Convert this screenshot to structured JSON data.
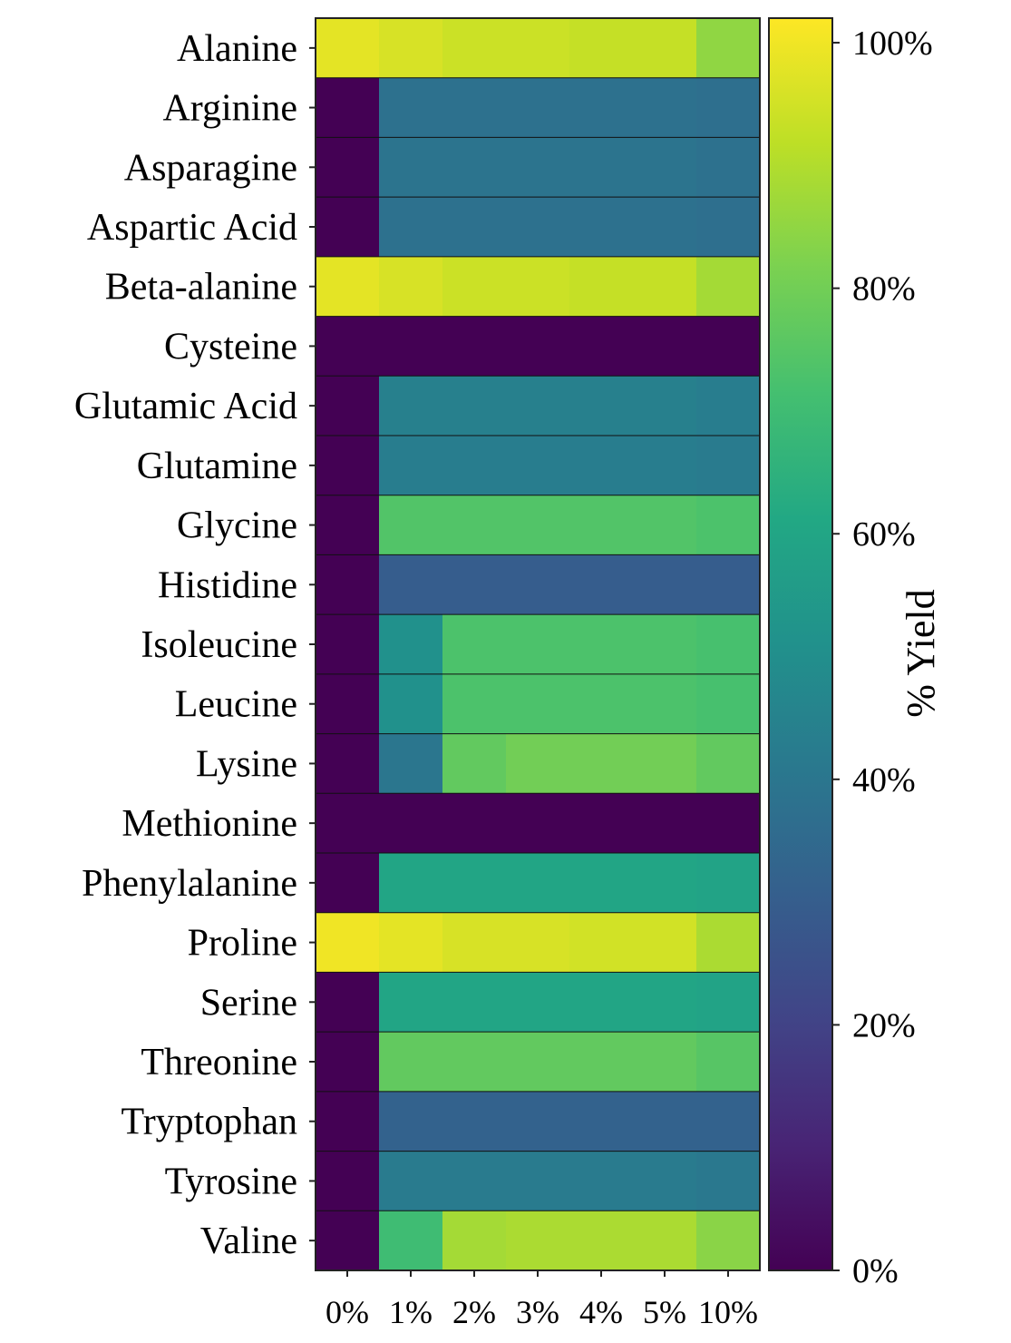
{
  "chart_data": {
    "type": "heatmap",
    "title": "",
    "xlabel": "",
    "ylabel": "",
    "x_categories": [
      "0%",
      "1%",
      "2%",
      "3%",
      "4%",
      "5%",
      "10%"
    ],
    "y_categories": [
      "Alanine",
      "Arginine",
      "Asparagine",
      "Aspartic Acid",
      "Beta-alanine",
      "Cysteine",
      "Glutamic Acid",
      "Glutamine",
      "Glycine",
      "Histidine",
      "Isoleucine",
      "Leucine",
      "Lysine",
      "Methionine",
      "Phenylalanine",
      "Proline",
      "Serine",
      "Threonine",
      "Tryptophan",
      "Tyrosine",
      "Valine"
    ],
    "values": [
      [
        98,
        96,
        94,
        94,
        93,
        93,
        85
      ],
      [
        0,
        38,
        38,
        38,
        38,
        38,
        37
      ],
      [
        0,
        39,
        39,
        39,
        39,
        39,
        38
      ],
      [
        0,
        38,
        38,
        38,
        38,
        38,
        37
      ],
      [
        98,
        96,
        94,
        94,
        93,
        93,
        88
      ],
      [
        0,
        0,
        0,
        0,
        0,
        0,
        0
      ],
      [
        0,
        44,
        44,
        44,
        44,
        44,
        43
      ],
      [
        0,
        43,
        43,
        43,
        43,
        43,
        42
      ],
      [
        0,
        74,
        74,
        74,
        74,
        74,
        73
      ],
      [
        0,
        30,
        30,
        30,
        30,
        30,
        30
      ],
      [
        0,
        51,
        73,
        73,
        73,
        73,
        72
      ],
      [
        0,
        51,
        73,
        73,
        73,
        73,
        72
      ],
      [
        0,
        40,
        77,
        80,
        80,
        80,
        77
      ],
      [
        0,
        0,
        0,
        0,
        0,
        0,
        0
      ],
      [
        0,
        60,
        60,
        60,
        60,
        60,
        59
      ],
      [
        100,
        98,
        96,
        96,
        95,
        95,
        89
      ],
      [
        0,
        60,
        60,
        60,
        60,
        60,
        59
      ],
      [
        0,
        77,
        77,
        77,
        77,
        77,
        75
      ],
      [
        0,
        32,
        32,
        32,
        32,
        32,
        32
      ],
      [
        0,
        42,
        42,
        42,
        42,
        42,
        41
      ],
      [
        0,
        70,
        88,
        89,
        89,
        89,
        84
      ]
    ],
    "colorbar": {
      "label": "% Yield",
      "ticks": [
        0,
        20,
        40,
        60,
        80,
        100
      ],
      "tick_labels": [
        "0%",
        "20%",
        "40%",
        "60%",
        "80%",
        "100%"
      ],
      "range": [
        0,
        102
      ],
      "colormap": "viridis"
    }
  },
  "colors": {
    "cell_border": "#111111",
    "axis": "#222222",
    "background": "#ffffff"
  }
}
